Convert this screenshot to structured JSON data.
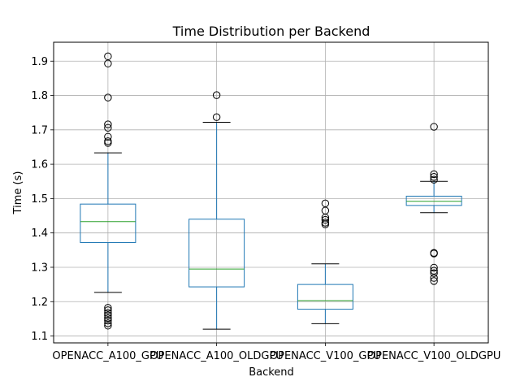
{
  "chart_data": {
    "type": "box",
    "title": "Time Distribution per Backend",
    "xlabel": "Backend",
    "ylabel": "Time (s)",
    "ylim": [
      1.08,
      1.955
    ],
    "yticks": [
      1.1,
      1.2,
      1.3,
      1.4,
      1.5,
      1.6,
      1.7,
      1.8,
      1.9
    ],
    "grid": true,
    "colors": {
      "box": "#1f77b4",
      "median": "#2ca02c",
      "whisker_cap": "#000000",
      "grid": "#b0b0b0",
      "flier": "#000000"
    },
    "categories": [
      "OPENACC_A100_GPU",
      "OPENACC_A100_OLDGPU",
      "OPENACC_V100_GPU",
      "OPENACC_V100_OLDGPU"
    ],
    "boxes": [
      {
        "category": "OPENACC_A100_GPU",
        "whisker_low": 1.227,
        "q1": 1.372,
        "median": 1.433,
        "q3": 1.484,
        "whisker_high": 1.633,
        "outliers": [
          1.914,
          1.893,
          1.794,
          1.716,
          1.706,
          1.68,
          1.667,
          1.662,
          1.182,
          1.175,
          1.167,
          1.16,
          1.152,
          1.145,
          1.137,
          1.13
        ]
      },
      {
        "category": "OPENACC_A100_OLDGPU",
        "whisker_low": 1.12,
        "q1": 1.243,
        "median": 1.295,
        "q3": 1.44,
        "whisker_high": 1.722,
        "outliers": [
          1.801,
          1.737
        ]
      },
      {
        "category": "OPENACC_V100_GPU",
        "whisker_low": 1.136,
        "q1": 1.178,
        "median": 1.203,
        "q3": 1.25,
        "whisker_high": 1.31,
        "outliers": [
          1.486,
          1.465,
          1.445,
          1.438,
          1.43,
          1.425
        ]
      },
      {
        "category": "OPENACC_V100_OLDGPU",
        "whisker_low": 1.459,
        "q1": 1.48,
        "median": 1.492,
        "q3": 1.507,
        "whisker_high": 1.55,
        "outliers": [
          1.709,
          1.571,
          1.563,
          1.555,
          1.342,
          1.34,
          1.299,
          1.29,
          1.283,
          1.269,
          1.26
        ]
      }
    ]
  }
}
